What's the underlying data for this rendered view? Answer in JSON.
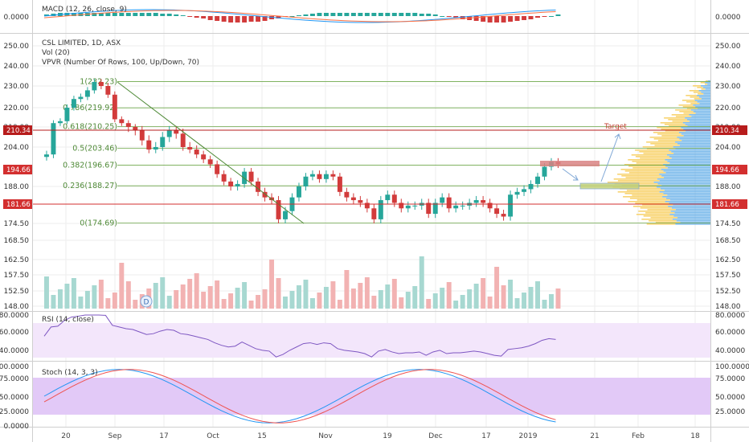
{
  "window": {
    "width": 932,
    "height": 550
  },
  "colors": {
    "up": "#26a69a",
    "down": "#d23b3b",
    "vol_up": "#a7d8d1",
    "vol_down": "#f2b2b2",
    "fib": "#6ea84a",
    "trend": "#4f8a37",
    "grid": "#eeeeee",
    "rsi_band": "#f3e6fb",
    "stoch_band": "#e2c9f7",
    "macd_line": "#2196f3",
    "signal_line": "#ff7043",
    "vpvr_up": "#f7cf63",
    "vpvr_down": "#5aa9e6",
    "tag_red": "#d32f2f",
    "tag_dark": "#b71c1c"
  },
  "header": {
    "symbol_line": "CSL LIMITED, 1D, ASX",
    "vol_line": "Vol (20)",
    "vpvr_line": "VPVR (Number Of Rows, 100, Up/Down, 70)",
    "macd_label": "MACD (12, 26, close, 9)",
    "rsi_label": "RSI (14, close)",
    "stoch_label": "Stoch (14, 3, 3)"
  },
  "price_tags": {
    "upper": "210.34",
    "current": "194.66",
    "lower": "181.66"
  },
  "annotations": {
    "target": "Target",
    "d_marker": "D"
  },
  "axes": {
    "macd_ticks": [
      "0.0000"
    ],
    "price_ticks": [
      "250.00",
      "240.00",
      "230.00",
      "220.00",
      "210.00",
      "204.00",
      "188.00",
      "174.50",
      "168.50",
      "162.50",
      "157.50",
      "152.50",
      "148.00"
    ],
    "rsi_ticks": [
      "80.0000",
      "60.0000",
      "40.0000"
    ],
    "stoch_ticks": [
      "100.0000",
      "75.0000",
      "50.0000",
      "25.0000",
      "0.0000"
    ],
    "date_ticks": [
      "20",
      "Sep",
      "17",
      "Oct",
      "15",
      "Nov",
      "19",
      "Dec",
      "17",
      "2019",
      "21",
      "Feb",
      "18"
    ]
  },
  "chart_data": {
    "type": "candlestick",
    "title": "CSL LIMITED, 1D, ASX",
    "ylim": [
      148,
      250
    ],
    "fibonacci": [
      {
        "label": "1(232.23)",
        "value": 232.23
      },
      {
        "label": "0.786(219.92)",
        "value": 219.92
      },
      {
        "label": "0.618(210.25)",
        "value": 210.25
      },
      {
        "label": "0.5(203.46)",
        "value": 203.46
      },
      {
        "label": "0.382(196.67)",
        "value": 196.67
      },
      {
        "label": "0.236(188.27)",
        "value": 188.27
      },
      {
        "label": "0(174.69)",
        "value": 174.69
      }
    ],
    "horizontal_lines": [
      {
        "value": 210.34
      },
      {
        "value": 181.66
      }
    ],
    "closes": [
      201,
      212,
      213,
      220,
      224,
      225,
      228,
      232,
      230,
      226,
      214,
      212,
      210,
      209,
      206,
      203,
      204,
      207,
      209,
      208,
      204,
      203,
      201,
      199,
      197,
      193,
      190,
      188,
      189,
      194,
      190,
      186,
      184,
      183,
      176,
      179,
      184,
      188,
      192,
      193,
      191,
      193,
      192,
      186,
      184,
      183,
      182,
      180,
      176,
      183,
      185,
      182,
      180,
      181,
      181,
      182,
      178,
      182,
      184,
      180,
      181,
      181,
      182,
      183,
      182,
      180,
      178,
      177,
      185,
      186,
      187,
      189,
      192,
      196,
      198,
      197
    ]
  }
}
